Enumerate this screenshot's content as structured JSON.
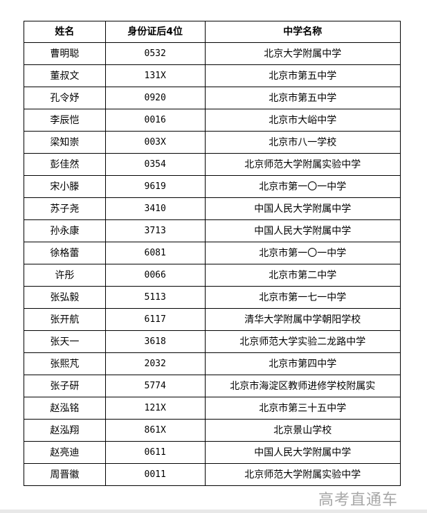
{
  "table": {
    "headers": [
      "姓名",
      "身份证后4位",
      "中学名称"
    ],
    "rows": [
      [
        "曹明聪",
        "0532",
        "北京大学附属中学"
      ],
      [
        "董叔文",
        "131X",
        "北京市第五中学"
      ],
      [
        "孔令妤",
        "0920",
        "北京市第五中学"
      ],
      [
        "李辰恺",
        "0016",
        "北京市大峪中学"
      ],
      [
        "梁知崇",
        "003X",
        "北京市八一学校"
      ],
      [
        "彭佳然",
        "0354",
        "北京师范大学附属实验中学"
      ],
      [
        "宋小滕",
        "9619",
        "北京市第一〇一中学"
      ],
      [
        "苏子尧",
        "3410",
        "中国人民大学附属中学"
      ],
      [
        "孙永康",
        "3713",
        "中国人民大学附属中学"
      ],
      [
        "徐格蕾",
        "6081",
        "北京市第一〇一中学"
      ],
      [
        "许彤",
        "0066",
        "北京市第二中学"
      ],
      [
        "张弘毅",
        "5113",
        "北京市第一七一中学"
      ],
      [
        "张开航",
        "6117",
        "清华大学附属中学朝阳学校"
      ],
      [
        "张天一",
        "3618",
        "北京师范大学实验二龙路中学"
      ],
      [
        "张熙芃",
        "2032",
        "北京市第四中学"
      ],
      [
        "张子研",
        "5774",
        "北京市海淀区教师进修学校附属实"
      ],
      [
        "赵泓铭",
        "121X",
        "北京市第三十五中学"
      ],
      [
        "赵泓翔",
        "861X",
        "北京景山学校"
      ],
      [
        "赵亮迪",
        "0611",
        "中国人民大学附属中学"
      ],
      [
        "周晋徽",
        "0011",
        "北京师范大学附属实验中学"
      ]
    ]
  },
  "watermark": "高考直通车"
}
